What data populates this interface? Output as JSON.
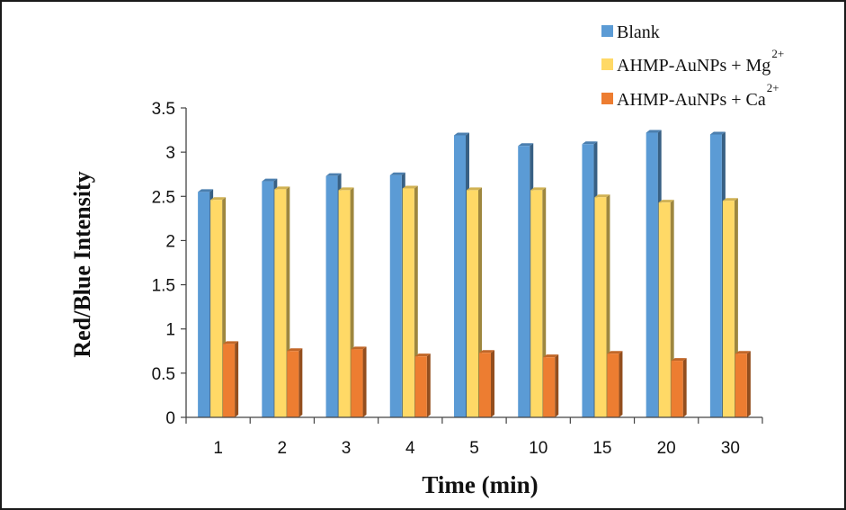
{
  "chart_data": {
    "type": "bar",
    "title": "",
    "xlabel": "Time (min)",
    "ylabel": "Red/Blue Intensity",
    "categories": [
      "1",
      "2",
      "3",
      "4",
      "5",
      "10",
      "15",
      "20",
      "30"
    ],
    "ylim": [
      0,
      3.5
    ],
    "yticks": [
      "0",
      "0.5",
      "1",
      "1.5",
      "2",
      "2.5",
      "3",
      "3.5"
    ],
    "grid": false,
    "legend_position": "top-right",
    "series": [
      {
        "name": "Blank",
        "color": "#5b9bd5",
        "values": [
          2.55,
          2.67,
          2.73,
          2.74,
          3.19,
          3.07,
          3.09,
          3.22,
          3.2
        ]
      },
      {
        "name": "AHMP-AuNPs + Mg",
        "superscript": "2+",
        "color": "#ffd966",
        "values": [
          2.46,
          2.58,
          2.57,
          2.59,
          2.57,
          2.57,
          2.49,
          2.43,
          2.45
        ]
      },
      {
        "name": "AHMP-AuNPs + Ca",
        "superscript": "2+",
        "color": "#ed7d31",
        "values": [
          0.83,
          0.75,
          0.77,
          0.69,
          0.73,
          0.68,
          0.72,
          0.64,
          0.72
        ]
      }
    ]
  }
}
